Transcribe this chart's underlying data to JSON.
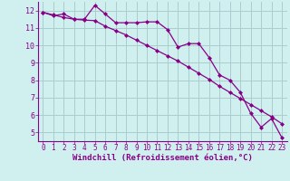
{
  "line1_x": [
    0,
    1,
    2,
    3,
    4,
    5,
    6,
    7,
    8,
    9,
    10,
    11,
    12,
    13,
    14,
    15,
    16,
    17,
    18,
    19,
    20,
    21,
    22,
    23
  ],
  "line1_y": [
    11.9,
    11.7,
    11.8,
    11.5,
    11.5,
    12.3,
    11.8,
    11.3,
    11.3,
    11.3,
    11.35,
    11.35,
    10.9,
    9.9,
    10.1,
    10.1,
    9.3,
    8.3,
    8.0,
    7.3,
    6.1,
    5.3,
    5.8,
    4.7
  ],
  "line2_x": [
    0,
    1,
    2,
    3,
    4,
    5,
    6,
    7,
    8,
    9,
    10,
    11,
    12,
    13,
    14,
    15,
    16,
    17,
    18,
    19,
    20,
    21,
    22,
    23
  ],
  "line2_y": [
    11.9,
    11.75,
    11.6,
    11.5,
    11.45,
    11.42,
    11.1,
    10.85,
    10.6,
    10.3,
    10.0,
    9.7,
    9.4,
    9.1,
    8.75,
    8.4,
    8.05,
    7.65,
    7.3,
    6.95,
    6.6,
    6.25,
    5.9,
    5.5
  ],
  "color": "#880088",
  "bg_color": "#d0f0f0",
  "grid_color": "#aacccc",
  "xlabel": "Windchill (Refroidissement éolien,°C)",
  "xlim": [
    -0.5,
    23.5
  ],
  "ylim": [
    4.5,
    12.5
  ],
  "yticks": [
    5,
    6,
    7,
    8,
    9,
    10,
    11,
    12
  ],
  "xticks": [
    0,
    1,
    2,
    3,
    4,
    5,
    6,
    7,
    8,
    9,
    10,
    11,
    12,
    13,
    14,
    15,
    16,
    17,
    18,
    19,
    20,
    21,
    22,
    23
  ],
  "tick_fontsize": 5.5,
  "xlabel_fontsize": 6.5
}
